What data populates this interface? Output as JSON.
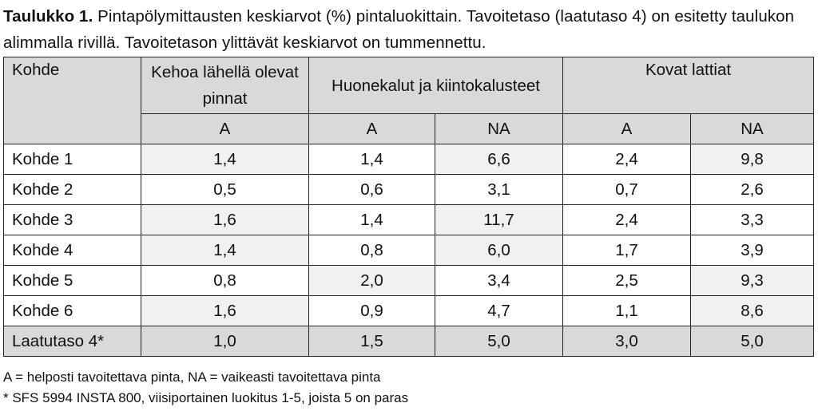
{
  "caption": {
    "label": "Taulukko 1.",
    "text": "Pintapölymittausten keskiarvot (%) pintaluokittain. Tavoitetaso (laatutaso 4) on esitetty taulukon alimmalla rivillä. Tavoitetason ylittävät keskiarvot on tummennettu."
  },
  "table": {
    "header": {
      "kohde": "Kohde",
      "group1": "Kehoa lähellä olevat pinnat",
      "group2": "Huonekalut ja kiintokalusteet",
      "group3": "Kovat lattiat"
    },
    "subheader": [
      "A",
      "A",
      "NA",
      "A",
      "NA"
    ],
    "rows": [
      {
        "name": "Kohde 1",
        "values": [
          "1,4",
          "1,4",
          "6,6",
          "2,4",
          "9,8"
        ]
      },
      {
        "name": "Kohde 2",
        "values": [
          "0,5",
          "0,6",
          "3,1",
          "0,7",
          "2,6"
        ]
      },
      {
        "name": "Kohde 3",
        "values": [
          "1,6",
          "1,4",
          "11,7",
          "2,4",
          "3,3"
        ]
      },
      {
        "name": "Kohde 4",
        "values": [
          "1,4",
          "0,8",
          "6,0",
          "1,7",
          "3,9"
        ]
      },
      {
        "name": "Kohde 5",
        "values": [
          "0,8",
          "2,0",
          "3,4",
          "2,5",
          "9,3"
        ]
      },
      {
        "name": "Kohde 6",
        "values": [
          "1,6",
          "0,9",
          "4,7",
          "1,1",
          "8,6"
        ]
      }
    ],
    "target": {
      "name": "Laatutaso 4*",
      "values": [
        "1,0",
        "1,5",
        "5,0",
        "3,0",
        "5,0"
      ]
    }
  },
  "footnotes": [
    "A = helposti tavoitettava pinta, NA = vaikeasti tavoitettava pinta",
    "* SFS 5994 INSTA 800, viisiportainen luokitus 1-5, joista 5 on paras"
  ]
}
